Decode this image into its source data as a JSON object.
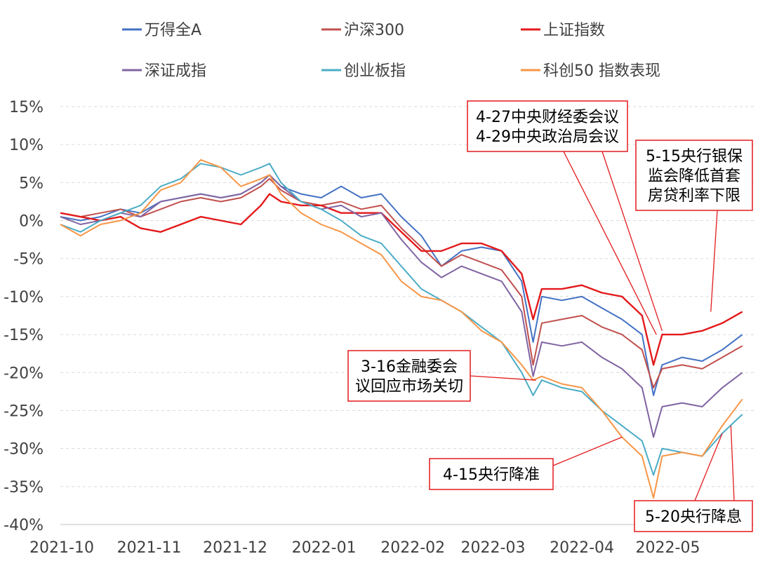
{
  "chart_data": {
    "type": "line",
    "title": "",
    "xlabel": "",
    "ylabel": "",
    "ylim": [
      -40,
      15
    ],
    "y_ticks": [
      15,
      10,
      5,
      0,
      -5,
      -10,
      -15,
      -20,
      -25,
      -30,
      -35,
      -40
    ],
    "y_tick_labels": [
      "15%",
      "10%",
      "5%",
      "0%",
      "-5%",
      "-10%",
      "-15%",
      "-20%",
      "-25%",
      "-30%",
      "-35%",
      "-40%"
    ],
    "grid": "horizontal dashed",
    "legend_position": "top",
    "x_tick_labels": [
      "2021-10",
      "2021-11",
      "2021-12",
      "2022-01",
      "2022-02",
      "2022-03",
      "2022-04",
      "2022-05"
    ],
    "x_tick_dates": [
      "2021-10-01",
      "2021-11-01",
      "2021-12-01",
      "2022-01-01",
      "2022-02-01",
      "2022-03-01",
      "2022-04-01",
      "2022-05-01"
    ],
    "series": [
      {
        "name": "万得全A",
        "color": "#4472C4",
        "points": [
          [
            "2021-10-01",
            0.5
          ],
          [
            "2021-10-08",
            0.0
          ],
          [
            "2021-10-15",
            0.5
          ],
          [
            "2021-10-22",
            1.5
          ],
          [
            "2021-10-29",
            1.0
          ],
          [
            "2021-11-05",
            2.5
          ],
          [
            "2021-11-12",
            3.0
          ],
          [
            "2021-11-19",
            3.5
          ],
          [
            "2021-11-26",
            3.0
          ],
          [
            "2021-12-03",
            3.5
          ],
          [
            "2021-12-10",
            5.0
          ],
          [
            "2021-12-13",
            6.0
          ],
          [
            "2021-12-17",
            4.5
          ],
          [
            "2021-12-24",
            3.5
          ],
          [
            "2021-12-31",
            3.0
          ],
          [
            "2022-01-07",
            4.5
          ],
          [
            "2022-01-14",
            3.0
          ],
          [
            "2022-01-21",
            3.5
          ],
          [
            "2022-01-28",
            0.5
          ],
          [
            "2022-02-04",
            -2.0
          ],
          [
            "2022-02-11",
            -6.0
          ],
          [
            "2022-02-18",
            -4.0
          ],
          [
            "2022-02-25",
            -3.5
          ],
          [
            "2022-03-04",
            -4.0
          ],
          [
            "2022-03-11",
            -8.0
          ],
          [
            "2022-03-15",
            -16.0
          ],
          [
            "2022-03-18",
            -10.0
          ],
          [
            "2022-03-25",
            -10.5
          ],
          [
            "2022-04-01",
            -10.0
          ],
          [
            "2022-04-08",
            -11.5
          ],
          [
            "2022-04-15",
            -13.0
          ],
          [
            "2022-04-22",
            -15.0
          ],
          [
            "2022-04-26",
            -23.0
          ],
          [
            "2022-04-29",
            -19.0
          ],
          [
            "2022-05-06",
            -18.0
          ],
          [
            "2022-05-13",
            -18.5
          ],
          [
            "2022-05-20",
            -17.0
          ],
          [
            "2022-05-27",
            -15.0
          ]
        ]
      },
      {
        "name": "沪深300",
        "color": "#C0504D",
        "points": [
          [
            "2021-10-01",
            1.0
          ],
          [
            "2021-10-08",
            0.5
          ],
          [
            "2021-10-15",
            1.0
          ],
          [
            "2021-10-22",
            1.5
          ],
          [
            "2021-10-29",
            0.5
          ],
          [
            "2021-11-05",
            1.5
          ],
          [
            "2021-11-12",
            2.5
          ],
          [
            "2021-11-19",
            3.0
          ],
          [
            "2021-11-26",
            2.5
          ],
          [
            "2021-12-03",
            3.0
          ],
          [
            "2021-12-10",
            4.5
          ],
          [
            "2021-12-13",
            5.5
          ],
          [
            "2021-12-17",
            4.0
          ],
          [
            "2021-12-24",
            2.5
          ],
          [
            "2021-12-31",
            2.0
          ],
          [
            "2022-01-07",
            2.5
          ],
          [
            "2022-01-14",
            1.5
          ],
          [
            "2022-01-21",
            2.0
          ],
          [
            "2022-01-28",
            -1.0
          ],
          [
            "2022-02-04",
            -3.5
          ],
          [
            "2022-02-11",
            -6.0
          ],
          [
            "2022-02-18",
            -4.5
          ],
          [
            "2022-02-25",
            -5.5
          ],
          [
            "2022-03-04",
            -6.5
          ],
          [
            "2022-03-11",
            -10.0
          ],
          [
            "2022-03-15",
            -19.0
          ],
          [
            "2022-03-18",
            -13.5
          ],
          [
            "2022-03-25",
            -13.0
          ],
          [
            "2022-04-01",
            -12.5
          ],
          [
            "2022-04-08",
            -14.0
          ],
          [
            "2022-04-15",
            -15.0
          ],
          [
            "2022-04-22",
            -17.0
          ],
          [
            "2022-04-26",
            -22.0
          ],
          [
            "2022-04-29",
            -19.5
          ],
          [
            "2022-05-06",
            -19.0
          ],
          [
            "2022-05-13",
            -19.5
          ],
          [
            "2022-05-20",
            -18.0
          ],
          [
            "2022-05-27",
            -16.5
          ]
        ]
      },
      {
        "name": "上证指数",
        "color": "#E31A1C",
        "points": [
          [
            "2021-10-01",
            1.0
          ],
          [
            "2021-10-08",
            0.5
          ],
          [
            "2021-10-15",
            0.0
          ],
          [
            "2021-10-22",
            0.5
          ],
          [
            "2021-10-29",
            -1.0
          ],
          [
            "2021-11-05",
            -1.5
          ],
          [
            "2021-11-12",
            -0.5
          ],
          [
            "2021-11-19",
            0.5
          ],
          [
            "2021-11-26",
            0.0
          ],
          [
            "2021-12-03",
            -0.5
          ],
          [
            "2021-12-10",
            2.0
          ],
          [
            "2021-12-13",
            3.5
          ],
          [
            "2021-12-17",
            2.5
          ],
          [
            "2021-12-24",
            2.0
          ],
          [
            "2021-12-31",
            2.0
          ],
          [
            "2022-01-07",
            1.0
          ],
          [
            "2022-01-14",
            1.0
          ],
          [
            "2022-01-21",
            1.0
          ],
          [
            "2022-01-28",
            -1.5
          ],
          [
            "2022-02-04",
            -4.0
          ],
          [
            "2022-02-11",
            -4.0
          ],
          [
            "2022-02-18",
            -3.0
          ],
          [
            "2022-02-25",
            -3.0
          ],
          [
            "2022-03-04",
            -4.0
          ],
          [
            "2022-03-11",
            -7.0
          ],
          [
            "2022-03-15",
            -13.0
          ],
          [
            "2022-03-18",
            -9.0
          ],
          [
            "2022-03-25",
            -9.0
          ],
          [
            "2022-04-01",
            -8.5
          ],
          [
            "2022-04-08",
            -9.5
          ],
          [
            "2022-04-15",
            -10.0
          ],
          [
            "2022-04-22",
            -12.5
          ],
          [
            "2022-04-26",
            -19.0
          ],
          [
            "2022-04-29",
            -15.0
          ],
          [
            "2022-05-06",
            -15.0
          ],
          [
            "2022-05-13",
            -14.5
          ],
          [
            "2022-05-20",
            -13.5
          ],
          [
            "2022-05-27",
            -12.0
          ]
        ]
      },
      {
        "name": "深证成指",
        "color": "#8064A2",
        "points": [
          [
            "2021-10-01",
            0.5
          ],
          [
            "2021-10-08",
            -0.5
          ],
          [
            "2021-10-15",
            0.0
          ],
          [
            "2021-10-22",
            1.0
          ],
          [
            "2021-10-29",
            0.5
          ],
          [
            "2021-11-05",
            2.5
          ],
          [
            "2021-11-12",
            3.0
          ],
          [
            "2021-11-19",
            3.5
          ],
          [
            "2021-11-26",
            3.0
          ],
          [
            "2021-12-03",
            3.5
          ],
          [
            "2021-12-10",
            5.0
          ],
          [
            "2021-12-13",
            6.0
          ],
          [
            "2021-12-17",
            4.5
          ],
          [
            "2021-12-24",
            2.5
          ],
          [
            "2021-12-31",
            1.5
          ],
          [
            "2022-01-07",
            2.0
          ],
          [
            "2022-01-14",
            0.5
          ],
          [
            "2022-01-21",
            1.0
          ],
          [
            "2022-01-28",
            -2.5
          ],
          [
            "2022-02-04",
            -5.5
          ],
          [
            "2022-02-11",
            -7.5
          ],
          [
            "2022-02-18",
            -6.0
          ],
          [
            "2022-02-25",
            -7.0
          ],
          [
            "2022-03-04",
            -8.0
          ],
          [
            "2022-03-11",
            -12.0
          ],
          [
            "2022-03-15",
            -20.5
          ],
          [
            "2022-03-18",
            -16.0
          ],
          [
            "2022-03-25",
            -16.5
          ],
          [
            "2022-04-01",
            -16.0
          ],
          [
            "2022-04-08",
            -18.0
          ],
          [
            "2022-04-15",
            -19.5
          ],
          [
            "2022-04-22",
            -22.0
          ],
          [
            "2022-04-26",
            -28.5
          ],
          [
            "2022-04-29",
            -24.5
          ],
          [
            "2022-05-06",
            -24.0
          ],
          [
            "2022-05-13",
            -24.5
          ],
          [
            "2022-05-20",
            -22.0
          ],
          [
            "2022-05-27",
            -20.0
          ]
        ]
      },
      {
        "name": "创业板指",
        "color": "#4BACC6",
        "points": [
          [
            "2021-10-01",
            -0.5
          ],
          [
            "2021-10-08",
            -1.5
          ],
          [
            "2021-10-15",
            0.0
          ],
          [
            "2021-10-22",
            1.0
          ],
          [
            "2021-10-29",
            2.0
          ],
          [
            "2021-11-05",
            4.5
          ],
          [
            "2021-11-12",
            5.5
          ],
          [
            "2021-11-19",
            7.5
          ],
          [
            "2021-11-26",
            7.0
          ],
          [
            "2021-12-03",
            6.0
          ],
          [
            "2021-12-10",
            7.0
          ],
          [
            "2021-12-13",
            7.5
          ],
          [
            "2021-12-17",
            5.0
          ],
          [
            "2021-12-24",
            2.5
          ],
          [
            "2021-12-31",
            1.5
          ],
          [
            "2022-01-07",
            0.0
          ],
          [
            "2022-01-14",
            -2.0
          ],
          [
            "2022-01-21",
            -3.0
          ],
          [
            "2022-01-28",
            -6.0
          ],
          [
            "2022-02-04",
            -9.0
          ],
          [
            "2022-02-11",
            -10.5
          ],
          [
            "2022-02-18",
            -12.0
          ],
          [
            "2022-02-25",
            -14.0
          ],
          [
            "2022-03-04",
            -16.0
          ],
          [
            "2022-03-11",
            -20.0
          ],
          [
            "2022-03-15",
            -23.0
          ],
          [
            "2022-03-18",
            -21.0
          ],
          [
            "2022-03-25",
            -22.0
          ],
          [
            "2022-04-01",
            -22.5
          ],
          [
            "2022-04-08",
            -25.0
          ],
          [
            "2022-04-15",
            -27.0
          ],
          [
            "2022-04-22",
            -29.0
          ],
          [
            "2022-04-26",
            -33.5
          ],
          [
            "2022-04-29",
            -30.0
          ],
          [
            "2022-05-06",
            -30.5
          ],
          [
            "2022-05-13",
            -31.0
          ],
          [
            "2022-05-20",
            -28.0
          ],
          [
            "2022-05-27",
            -25.5
          ]
        ]
      },
      {
        "name": "科创50 指数表现",
        "color": "#F79646",
        "points": [
          [
            "2021-10-01",
            -0.5
          ],
          [
            "2021-10-08",
            -2.0
          ],
          [
            "2021-10-15",
            -0.5
          ],
          [
            "2021-10-22",
            0.0
          ],
          [
            "2021-10-29",
            1.0
          ],
          [
            "2021-11-05",
            4.0
          ],
          [
            "2021-11-12",
            5.0
          ],
          [
            "2021-11-19",
            8.0
          ],
          [
            "2021-11-26",
            7.0
          ],
          [
            "2021-12-03",
            4.5
          ],
          [
            "2021-12-10",
            5.5
          ],
          [
            "2021-12-13",
            6.0
          ],
          [
            "2021-12-17",
            3.5
          ],
          [
            "2021-12-24",
            1.0
          ],
          [
            "2021-12-31",
            -0.5
          ],
          [
            "2022-01-07",
            -1.5
          ],
          [
            "2022-01-14",
            -3.0
          ],
          [
            "2022-01-21",
            -4.5
          ],
          [
            "2022-01-28",
            -8.0
          ],
          [
            "2022-02-04",
            -10.0
          ],
          [
            "2022-02-11",
            -10.5
          ],
          [
            "2022-02-18",
            -12.0
          ],
          [
            "2022-02-25",
            -14.5
          ],
          [
            "2022-03-04",
            -16.0
          ],
          [
            "2022-03-11",
            -19.0
          ],
          [
            "2022-03-15",
            -21.0
          ],
          [
            "2022-03-18",
            -20.5
          ],
          [
            "2022-03-25",
            -21.5
          ],
          [
            "2022-04-01",
            -22.0
          ],
          [
            "2022-04-08",
            -25.0
          ],
          [
            "2022-04-15",
            -28.5
          ],
          [
            "2022-04-22",
            -31.0
          ],
          [
            "2022-04-26",
            -36.5
          ],
          [
            "2022-04-29",
            -31.0
          ],
          [
            "2022-05-06",
            -30.5
          ],
          [
            "2022-05-13",
            -31.0
          ],
          [
            "2022-05-20",
            -27.0
          ],
          [
            "2022-05-27",
            -23.5
          ]
        ]
      }
    ],
    "annotations": [
      {
        "id": "anno-central-meetings",
        "lines": [
          "4-27中央财经委会议",
          "4-29中央政治局会议"
        ],
        "targets": [
          [
            "2022-04-27",
            -15.0
          ],
          [
            "2022-04-29",
            -14.5
          ]
        ]
      },
      {
        "id": "anno-mortgage-rate",
        "lines": [
          "5-15央行银保",
          "监会降低首套",
          "房贷利率下限"
        ],
        "targets": [
          [
            "2022-05-16",
            -12.0
          ]
        ]
      },
      {
        "id": "anno-financial-committee",
        "lines": [
          "3-16金融委会",
          "议回应市场关切"
        ],
        "targets": [
          [
            "2022-03-16",
            -21.0
          ]
        ]
      },
      {
        "id": "anno-rrr-cut",
        "lines": [
          "4-15央行降准"
        ],
        "targets": [
          [
            "2022-04-15",
            -28.5
          ]
        ]
      },
      {
        "id": "anno-lpr-cut",
        "lines": [
          "5-20央行降息"
        ],
        "targets": [
          [
            "2022-05-20",
            -28.0
          ],
          [
            "2022-05-23",
            -27.0
          ]
        ]
      }
    ]
  }
}
